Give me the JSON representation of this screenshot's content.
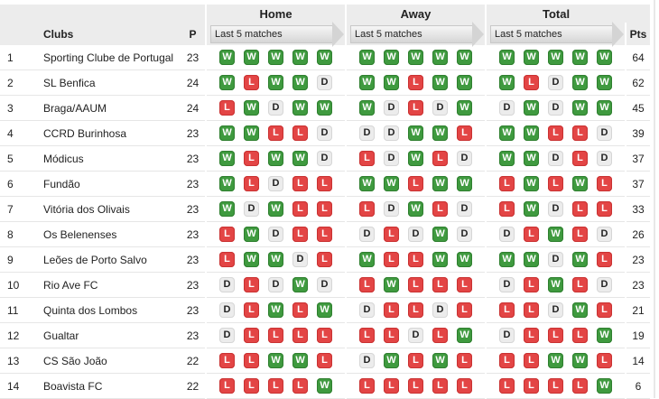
{
  "headers": {
    "clubs": "Clubs",
    "p": "P",
    "home": "Home",
    "away": "Away",
    "total": "Total",
    "last5": "Last 5 matches",
    "pts": "Pts"
  },
  "colors": {
    "win": "#3f9a3f",
    "loss": "#e34545",
    "draw": "#ececec"
  },
  "rows": [
    {
      "rank": "1",
      "club": "Sporting Clube de Portugal",
      "p": "23",
      "home": [
        "W",
        "W",
        "W",
        "W",
        "W"
      ],
      "away": [
        "W",
        "W",
        "W",
        "W",
        "W"
      ],
      "total": [
        "W",
        "W",
        "W",
        "W",
        "W"
      ],
      "pts": "64"
    },
    {
      "rank": "2",
      "club": "SL Benfica",
      "p": "24",
      "home": [
        "W",
        "L",
        "W",
        "W",
        "D"
      ],
      "away": [
        "W",
        "W",
        "L",
        "W",
        "W"
      ],
      "total": [
        "W",
        "L",
        "D",
        "W",
        "W"
      ],
      "pts": "62"
    },
    {
      "rank": "3",
      "club": "Braga/AAUM",
      "p": "24",
      "home": [
        "L",
        "W",
        "D",
        "W",
        "W"
      ],
      "away": [
        "W",
        "D",
        "L",
        "D",
        "W"
      ],
      "total": [
        "D",
        "W",
        "D",
        "W",
        "W"
      ],
      "pts": "45"
    },
    {
      "rank": "4",
      "club": "CCRD Burinhosa",
      "p": "23",
      "home": [
        "W",
        "W",
        "L",
        "L",
        "D"
      ],
      "away": [
        "D",
        "D",
        "W",
        "W",
        "L"
      ],
      "total": [
        "W",
        "W",
        "L",
        "L",
        "D"
      ],
      "pts": "39"
    },
    {
      "rank": "5",
      "club": "Módicus",
      "p": "23",
      "home": [
        "W",
        "L",
        "W",
        "W",
        "D"
      ],
      "away": [
        "L",
        "D",
        "W",
        "L",
        "D"
      ],
      "total": [
        "W",
        "W",
        "D",
        "L",
        "D"
      ],
      "pts": "37"
    },
    {
      "rank": "6",
      "club": "Fundão",
      "p": "23",
      "home": [
        "W",
        "L",
        "D",
        "L",
        "L"
      ],
      "away": [
        "W",
        "W",
        "L",
        "W",
        "W"
      ],
      "total": [
        "L",
        "W",
        "L",
        "W",
        "L"
      ],
      "pts": "37"
    },
    {
      "rank": "7",
      "club": "Vitória dos Olivais",
      "p": "23",
      "home": [
        "W",
        "D",
        "W",
        "L",
        "L"
      ],
      "away": [
        "L",
        "D",
        "W",
        "L",
        "D"
      ],
      "total": [
        "L",
        "W",
        "D",
        "L",
        "L"
      ],
      "pts": "33"
    },
    {
      "rank": "8",
      "club": "Os Belenenses",
      "p": "23",
      "home": [
        "L",
        "W",
        "D",
        "L",
        "L"
      ],
      "away": [
        "D",
        "L",
        "D",
        "W",
        "D"
      ],
      "total": [
        "D",
        "L",
        "W",
        "L",
        "D"
      ],
      "pts": "26"
    },
    {
      "rank": "9",
      "club": "Leões de Porto Salvo",
      "p": "23",
      "home": [
        "L",
        "W",
        "W",
        "D",
        "L"
      ],
      "away": [
        "W",
        "L",
        "L",
        "W",
        "W"
      ],
      "total": [
        "W",
        "W",
        "D",
        "W",
        "L"
      ],
      "pts": "23"
    },
    {
      "rank": "10",
      "club": "Rio Ave FC",
      "p": "23",
      "home": [
        "D",
        "L",
        "D",
        "W",
        "D"
      ],
      "away": [
        "L",
        "W",
        "L",
        "L",
        "L"
      ],
      "total": [
        "D",
        "L",
        "W",
        "L",
        "D"
      ],
      "pts": "23"
    },
    {
      "rank": "11",
      "club": "Quinta dos Lombos",
      "p": "23",
      "home": [
        "D",
        "L",
        "W",
        "L",
        "W"
      ],
      "away": [
        "D",
        "L",
        "L",
        "D",
        "L"
      ],
      "total": [
        "L",
        "L",
        "D",
        "W",
        "L"
      ],
      "pts": "21"
    },
    {
      "rank": "12",
      "club": "Gualtar",
      "p": "23",
      "home": [
        "D",
        "L",
        "L",
        "L",
        "L"
      ],
      "away": [
        "L",
        "L",
        "D",
        "L",
        "W"
      ],
      "total": [
        "D",
        "L",
        "L",
        "L",
        "W"
      ],
      "pts": "19"
    },
    {
      "rank": "13",
      "club": "CS São João",
      "p": "22",
      "home": [
        "L",
        "L",
        "W",
        "W",
        "L"
      ],
      "away": [
        "D",
        "W",
        "L",
        "W",
        "L"
      ],
      "total": [
        "L",
        "L",
        "W",
        "W",
        "L"
      ],
      "pts": "14"
    },
    {
      "rank": "14",
      "club": "Boavista FC",
      "p": "22",
      "home": [
        "L",
        "L",
        "L",
        "L",
        "W"
      ],
      "away": [
        "L",
        "L",
        "L",
        "L",
        "L"
      ],
      "total": [
        "L",
        "L",
        "L",
        "L",
        "W"
      ],
      "pts": "6"
    }
  ]
}
